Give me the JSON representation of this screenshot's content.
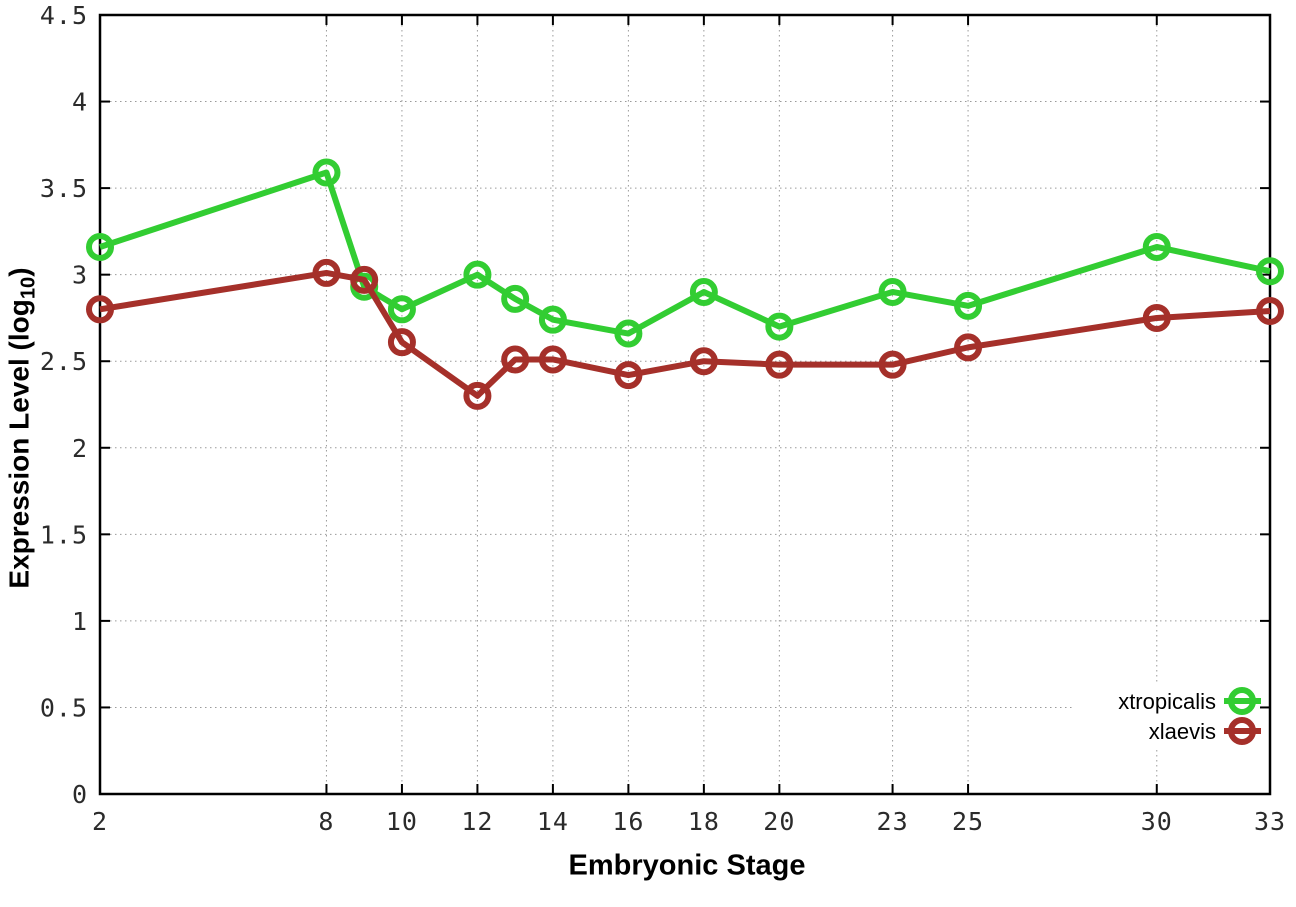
{
  "chart_data": {
    "type": "line",
    "title": "",
    "xlabel": "Embryonic Stage",
    "ylabel": "Expression Level (log10)",
    "ylabel_parts": {
      "prefix": "Expression Level (log",
      "sub": "10",
      "suffix": ")"
    },
    "marker": "open-circle",
    "x": [
      2,
      8,
      9,
      10,
      12,
      13,
      14,
      16,
      18,
      20,
      23,
      25,
      30,
      33
    ],
    "series": [
      {
        "name": "xtropicalis",
        "color": "#32cd32",
        "values": [
          3.16,
          3.59,
          2.93,
          2.8,
          3.0,
          2.86,
          2.74,
          2.66,
          2.9,
          2.7,
          2.9,
          2.82,
          3.16,
          3.02
        ]
      },
      {
        "name": "xlaevis",
        "color": "#a5302a",
        "values": [
          2.8,
          3.01,
          2.97,
          2.61,
          2.3,
          2.51,
          2.51,
          2.42,
          2.5,
          2.48,
          2.48,
          2.58,
          2.75,
          2.79
        ]
      }
    ],
    "xticks": [
      2,
      8,
      10,
      12,
      14,
      16,
      18,
      20,
      23,
      25,
      30,
      33
    ],
    "yticks": [
      0,
      0.5,
      1,
      1.5,
      2,
      2.5,
      3,
      3.5,
      4,
      4.5
    ],
    "xlim": [
      2,
      33
    ],
    "ylim": [
      0,
      4.5
    ],
    "grid": true,
    "legend_position": "bottom-right",
    "colors": {
      "axis": "#000000",
      "grid": "#9a9a9a",
      "tick_label": "#2b2b2b",
      "legend_text": "#000000",
      "background": "#ffffff"
    }
  }
}
